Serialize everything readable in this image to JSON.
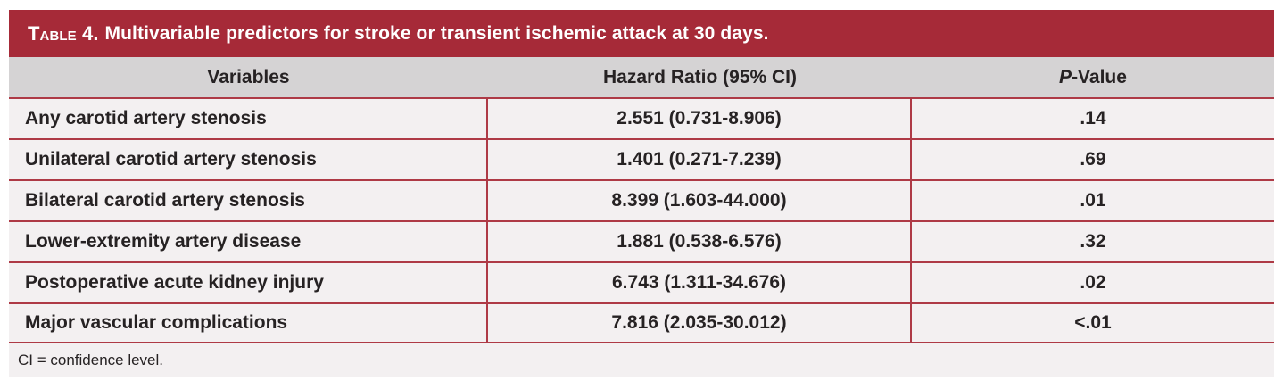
{
  "colors": {
    "accent_red": "#a62a38",
    "divider_red": "#ae3a46",
    "header_gray": "#d5d3d4",
    "row_background": "#f3f0f1",
    "text_dark": "#262223",
    "title_text": "#ffffff"
  },
  "table": {
    "title": {
      "label": "Table 4.",
      "text": "Multivariable predictors for stroke or transient ischemic attack at 30 days."
    },
    "header": {
      "variables": "Variables",
      "hazard_ratio": "Hazard Ratio (95% CI)",
      "p_italic": "P",
      "p_rest": "-Value"
    },
    "rows": [
      {
        "variable": "Any carotid artery stenosis",
        "hazard_ratio": "2.551 (0.731-8.906)",
        "p_value": ".14"
      },
      {
        "variable": "Unilateral carotid artery stenosis",
        "hazard_ratio": "1.401 (0.271-7.239)",
        "p_value": ".69"
      },
      {
        "variable": "Bilateral carotid artery stenosis",
        "hazard_ratio": "8.399 (1.603-44.000)",
        "p_value": ".01"
      },
      {
        "variable": "Lower-extremity artery disease",
        "hazard_ratio": "1.881 (0.538-6.576)",
        "p_value": ".32"
      },
      {
        "variable": "Postoperative acute kidney injury",
        "hazard_ratio": "6.743 (1.311-34.676)",
        "p_value": ".02"
      },
      {
        "variable": "Major vascular complications",
        "hazard_ratio": "7.816 (2.035-30.012)",
        "p_value": "<.01"
      }
    ],
    "footnote": "CI = confidence level."
  }
}
